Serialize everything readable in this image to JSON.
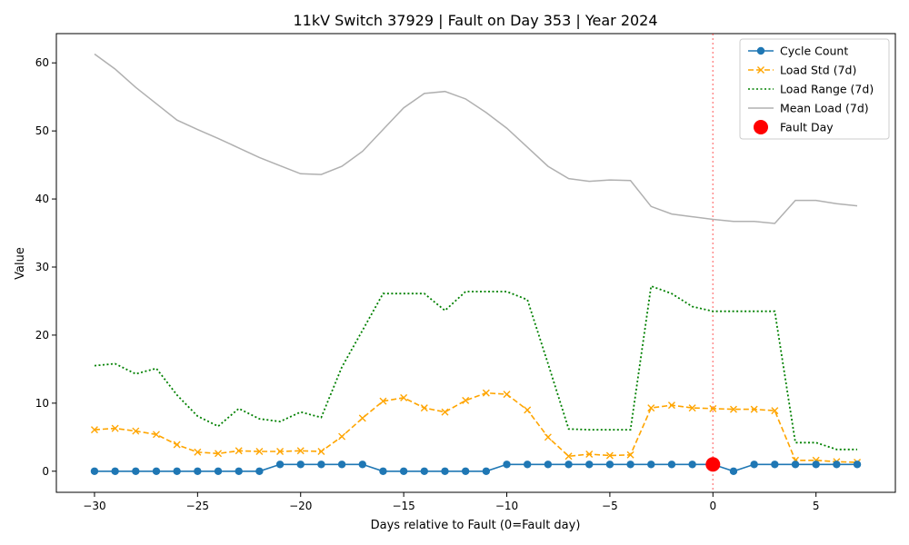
{
  "chart_data": {
    "type": "line",
    "title": "11kV Switch 37929 | Fault on Day 353 | Year 2024",
    "xlabel": "Days relative to Fault (0=Fault day)",
    "ylabel": "Value",
    "xlim": [
      -31.85,
      8.85
    ],
    "ylim": [
      -3.1,
      64.3
    ],
    "xticks": [
      -30,
      -25,
      -20,
      -15,
      -10,
      -5,
      0,
      5
    ],
    "yticks": [
      0,
      10,
      20,
      30,
      40,
      50,
      60
    ],
    "grid": false,
    "legend_position": "top-right",
    "fault_line_x": 0,
    "x": [
      -30,
      -29,
      -28,
      -27,
      -26,
      -25,
      -24,
      -23,
      -22,
      -21,
      -20,
      -19,
      -18,
      -17,
      -16,
      -15,
      -14,
      -13,
      -12,
      -11,
      -10,
      -9,
      -8,
      -7,
      -6,
      -5,
      -4,
      -3,
      -2,
      -1,
      0,
      1,
      2,
      3,
      4,
      5,
      6,
      7
    ],
    "series": [
      {
        "name": "Cycle Count",
        "color": "#1f77b4",
        "style": "solid-circle",
        "values": [
          0,
          0,
          0,
          0,
          0,
          0,
          0,
          0,
          0,
          1,
          1,
          1,
          1,
          1,
          0,
          0,
          0,
          0,
          0,
          0,
          1,
          1,
          1,
          1,
          1,
          1,
          1,
          1,
          1,
          1,
          1,
          0,
          1,
          1,
          1,
          1,
          1,
          1
        ]
      },
      {
        "name": "Load Std (7d)",
        "color": "#ffa500",
        "style": "dashed-x",
        "values": [
          6.1,
          6.3,
          5.9,
          5.4,
          3.9,
          2.8,
          2.6,
          3.0,
          2.9,
          2.9,
          3.0,
          2.9,
          5.1,
          7.8,
          10.3,
          10.8,
          9.3,
          8.7,
          10.4,
          11.5,
          11.3,
          9.0,
          5.0,
          2.2,
          2.5,
          2.3,
          2.4,
          9.3,
          9.7,
          9.3,
          9.2,
          9.1,
          9.1,
          8.9,
          1.6,
          1.6,
          1.4,
          1.3
        ]
      },
      {
        "name": "Load Range (7d)",
        "color": "#008000",
        "style": "dotted",
        "values": [
          15.5,
          15.8,
          14.3,
          15.1,
          11.2,
          8.1,
          6.6,
          9.2,
          7.7,
          7.3,
          8.7,
          7.9,
          15.3,
          20.7,
          26.1,
          26.1,
          26.1,
          23.6,
          26.4,
          26.4,
          26.4,
          25.2,
          15.8,
          6.2,
          6.1,
          6.1,
          6.1,
          27.2,
          26.1,
          24.2,
          23.5,
          23.5,
          23.5,
          23.5,
          4.2,
          4.2,
          3.2,
          3.2
        ]
      },
      {
        "name": "Mean Load (7d)",
        "color": "#b0b0b0",
        "style": "solid",
        "values": [
          61.3,
          59.1,
          56.4,
          54.0,
          51.6,
          50.2,
          48.9,
          47.5,
          46.1,
          44.9,
          43.7,
          43.6,
          44.8,
          47.0,
          50.2,
          53.4,
          55.5,
          55.8,
          54.7,
          52.7,
          50.4,
          47.6,
          44.8,
          43.0,
          42.6,
          42.8,
          42.7,
          38.9,
          37.8,
          37.4,
          37.0,
          36.7,
          36.7,
          36.4,
          39.8,
          39.8,
          39.3,
          39.0
        ]
      }
    ],
    "marker": {
      "name": "Fault Day",
      "color": "#ff0000",
      "x": 0,
      "y": 1
    }
  }
}
